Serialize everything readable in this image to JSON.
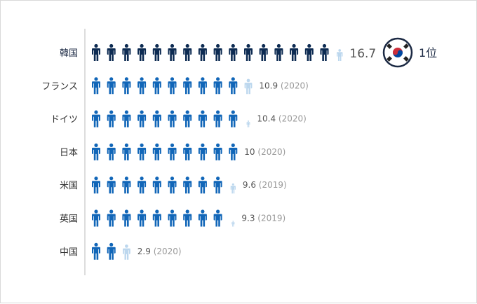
{
  "chart_data": {
    "type": "bar",
    "categories": [
      "韓国",
      "フランス",
      "ドイツ",
      "日本",
      "米国",
      "英国",
      "中国"
    ],
    "values": [
      16.7,
      10.9,
      10.4,
      10,
      9.6,
      9.3,
      2.9
    ],
    "years": [
      "",
      "2020",
      "2020",
      "2020",
      "2019",
      "2019",
      "2020"
    ],
    "value_labels": [
      "16.7",
      "10.9",
      "10.4",
      "10",
      "9.6",
      "9.3",
      "2.9"
    ],
    "year_labels": [
      "",
      "(2020)",
      "(2020)",
      "(2020)",
      "(2019)",
      "(2019)",
      "(2020)"
    ],
    "highlight_index": 0,
    "rank_label": "1位",
    "colors": {
      "highlight": "#0d2b52",
      "normal": "#1166b8",
      "partial": "#bcd7ee",
      "axis": "#bbbbbb",
      "flag_border": "#1c2a44",
      "flag_red": "#cd2e3a",
      "flag_blue": "#0047a0"
    },
    "icon": "person-icon",
    "title": "",
    "xlabel": "",
    "ylabel": ""
  }
}
